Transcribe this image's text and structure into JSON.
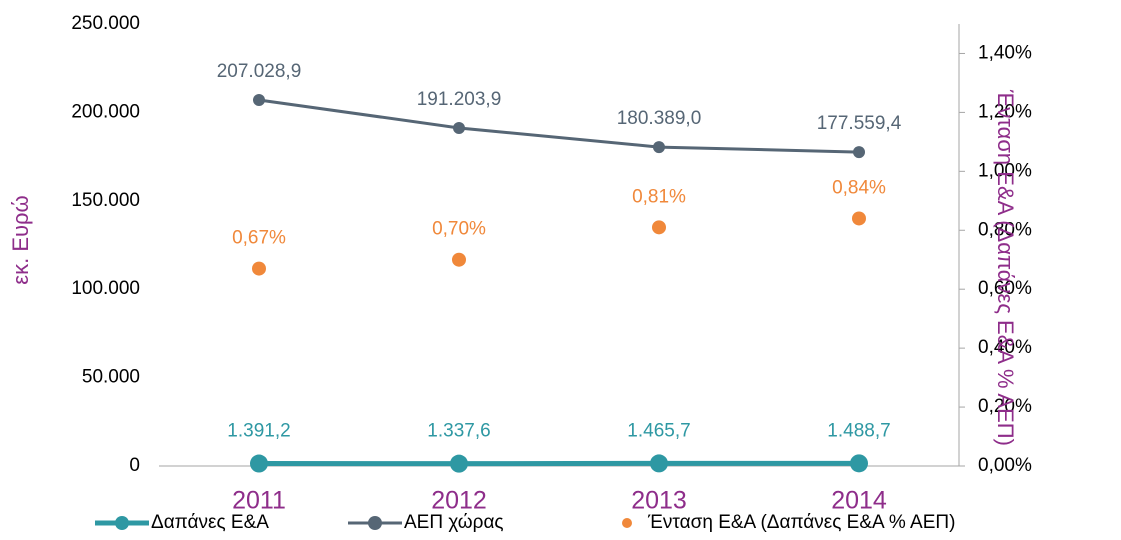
{
  "chart_data": {
    "type": "line",
    "categories": [
      "2011",
      "2012",
      "2013",
      "2014"
    ],
    "ylabel": "εκ. Ευρώ",
    "y2label": "Ένταση Ε&Α (Δαπάνες Ε&Α % ΑΕΠ)",
    "ylim": [
      0,
      250000
    ],
    "yticks": [
      0,
      {
        "value": 50000,
        "label": "50.000"
      },
      {
        "value": 100000,
        "label": "100.000"
      },
      {
        "value": 150000,
        "label": "150.000"
      },
      {
        "value": 200000,
        "label": "200.000"
      },
      {
        "value": 250000,
        "label": "250.000"
      }
    ],
    "y2lim": [
      0,
      1.5
    ],
    "y2ticks": [
      {
        "value": 0,
        "label": "0,00%"
      },
      {
        "value": 0.2,
        "label": "0,20%"
      },
      {
        "value": 0.4,
        "label": "0,40%"
      },
      {
        "value": 0.6,
        "label": "0,60%"
      },
      {
        "value": 0.8,
        "label": "0,80%"
      },
      {
        "value": 1.0,
        "label": "1,00%"
      },
      {
        "value": 1.2,
        "label": "1,20%"
      },
      {
        "value": 1.4,
        "label": "1,40%"
      }
    ],
    "series": [
      {
        "name": "Δαπάνες Ε&Α",
        "color": "#2e98a3",
        "values": [
          1391.2,
          1337.6,
          1465.7,
          1488.7
        ],
        "value_labels": [
          "1.391,2",
          "1.337,6",
          "1.465,7",
          "1.488,7"
        ]
      },
      {
        "name": "ΑΕΠ χώρας",
        "color": "#566675",
        "values": [
          207028.9,
          191203.9,
          180389.0,
          177559.4
        ],
        "value_labels": [
          "207.028,9",
          "191.203,9",
          "180.389,0",
          "177.559,4"
        ]
      },
      {
        "name": "Ένταση Ε&Α (Δαπάνες Ε&Α % ΑΕΠ)",
        "type": "scatter",
        "axis": "y2",
        "color": "#f0883a",
        "values": [
          0.67,
          0.7,
          0.81,
          0.84
        ],
        "value_labels": [
          "0,67%",
          "0,70%",
          "0,81%",
          "0,84%"
        ]
      }
    ]
  }
}
